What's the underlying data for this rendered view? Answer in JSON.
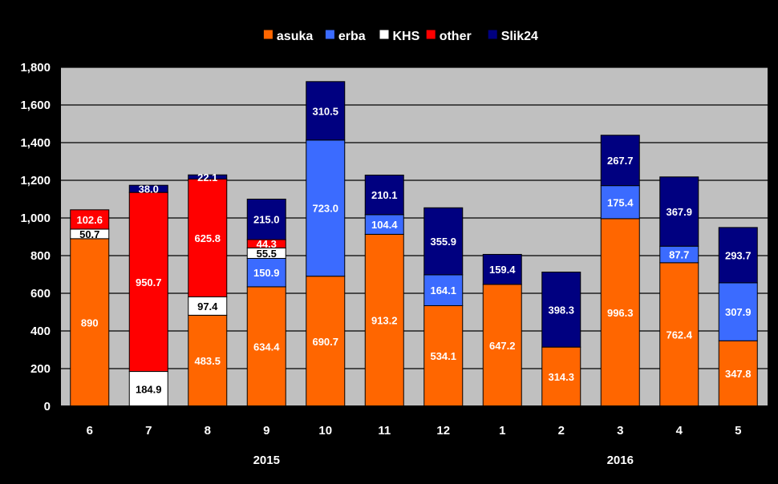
{
  "chart_data": {
    "type": "bar",
    "stacked": true,
    "categories": [
      "6",
      "7",
      "8",
      "9",
      "10",
      "11",
      "12",
      "1",
      "2",
      "3",
      "4",
      "5"
    ],
    "group_labels": [
      {
        "label": "2015",
        "from": "6",
        "to": "12"
      },
      {
        "label": "2016",
        "from": "1",
        "to": "5"
      }
    ],
    "series": [
      {
        "name": "asuka",
        "color": "#ff6600",
        "values": [
          890,
          0,
          483.5,
          634.4,
          690.7,
          913.2,
          534.1,
          647.2,
          314.3,
          996.3,
          762.4,
          347.8
        ],
        "labels": [
          "890",
          null,
          "483.5",
          "634.4",
          "690.7",
          "913.2",
          "534.1",
          "647.2",
          "314.3",
          "996.3",
          "762.4",
          "347.8"
        ]
      },
      {
        "name": "erba",
        "color": "#3b6bff",
        "values": [
          0,
          0,
          0,
          150.9,
          723.0,
          104.4,
          164.1,
          0,
          0,
          175.4,
          87.7,
          307.9
        ],
        "labels": [
          null,
          null,
          null,
          "150.9",
          "723.0",
          "104.4",
          "164.1",
          null,
          null,
          "175.4",
          "87.7",
          "307.9"
        ]
      },
      {
        "name": "KHS",
        "color": "#ffffff",
        "values": [
          50.7,
          184.9,
          97.4,
          55.5,
          0,
          0,
          0,
          0,
          0,
          0,
          0,
          0
        ],
        "labels": [
          "50.7",
          "184.9",
          "97.4",
          "55.5",
          null,
          null,
          null,
          null,
          null,
          null,
          null,
          null
        ]
      },
      {
        "name": "other",
        "color": "#ff0000",
        "values": [
          102.6,
          950.7,
          625.8,
          44.3,
          0,
          0,
          0,
          0,
          0,
          0,
          0,
          0
        ],
        "labels": [
          "102.6",
          "950.7",
          "625.8",
          "44.3",
          null,
          null,
          null,
          null,
          null,
          null,
          null,
          null
        ]
      },
      {
        "name": "Slik24",
        "color": "#000080",
        "values": [
          0,
          38.0,
          22.1,
          215.0,
          310.5,
          210.1,
          355.9,
          159.4,
          398.3,
          267.7,
          367.9,
          293.7
        ],
        "labels": [
          null,
          "38.0",
          "22.1",
          "215.0",
          "310.5",
          "210.1",
          "355.9",
          "159.4",
          "398.3",
          "267.7",
          "367.9",
          "293.7"
        ]
      }
    ],
    "ylim": [
      0,
      1800
    ],
    "yticks": [
      "0",
      "200",
      "400",
      "600",
      "800",
      "1,000",
      "1,200",
      "1,400",
      "1,600",
      "1,800"
    ],
    "ytick_values": [
      0,
      200,
      400,
      600,
      800,
      1000,
      1200,
      1400,
      1600,
      1800
    ],
    "grid": true,
    "legend_position": "top",
    "colors": {
      "page_background": "#000000",
      "plot_background": "#c0c0c0",
      "text": "#ffffff"
    }
  }
}
